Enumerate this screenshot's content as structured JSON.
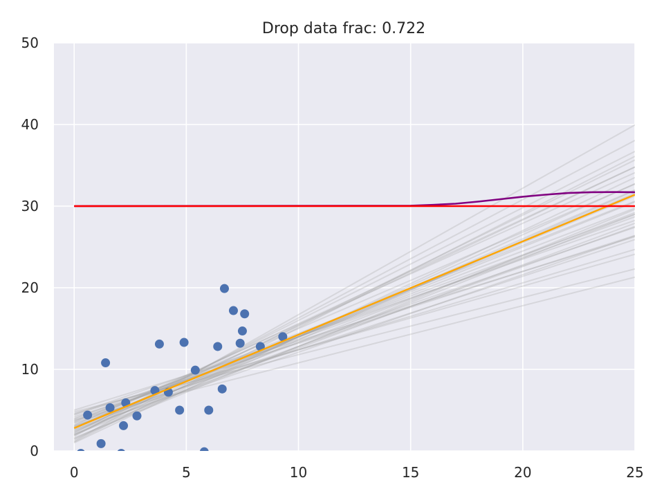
{
  "chart_data": {
    "type": "scatter",
    "title": "Drop data frac: 0.722",
    "xlabel": "",
    "ylabel": "",
    "xlim": [
      -0.9,
      25
    ],
    "ylim": [
      0,
      50
    ],
    "xticks": [
      0,
      5,
      10,
      15,
      20,
      25
    ],
    "yticks": [
      0,
      10,
      20,
      30,
      40,
      50
    ],
    "grid": true,
    "background": "#eaeaf2",
    "colors": {
      "points": "#4c72b0",
      "posterior_lines": "#a0a0a0",
      "fit_line": "#ffa500",
      "prior_constant": "#ff0000",
      "smooth_curve": "#800080"
    },
    "points": [
      {
        "x": 0.3,
        "y": -0.3
      },
      {
        "x": 0.6,
        "y": 4.4
      },
      {
        "x": 1.2,
        "y": 0.9
      },
      {
        "x": 1.4,
        "y": 10.8
      },
      {
        "x": 1.6,
        "y": 5.3
      },
      {
        "x": 2.1,
        "y": -0.3
      },
      {
        "x": 2.2,
        "y": 3.1
      },
      {
        "x": 2.3,
        "y": 5.9
      },
      {
        "x": 2.8,
        "y": 4.3
      },
      {
        "x": 3.6,
        "y": 7.4
      },
      {
        "x": 3.8,
        "y": 13.1
      },
      {
        "x": 4.2,
        "y": 7.2
      },
      {
        "x": 4.7,
        "y": 5.0
      },
      {
        "x": 4.9,
        "y": 13.3
      },
      {
        "x": 5.4,
        "y": 9.9
      },
      {
        "x": 5.8,
        "y": -0.1
      },
      {
        "x": 6.0,
        "y": 5.0
      },
      {
        "x": 6.4,
        "y": 12.8
      },
      {
        "x": 6.6,
        "y": 7.6
      },
      {
        "x": 6.7,
        "y": 19.9
      },
      {
        "x": 7.1,
        "y": 17.2
      },
      {
        "x": 7.4,
        "y": 13.2
      },
      {
        "x": 7.5,
        "y": 14.7
      },
      {
        "x": 7.6,
        "y": 16.8
      },
      {
        "x": 8.3,
        "y": 12.8
      },
      {
        "x": 9.3,
        "y": 14.0
      }
    ],
    "posterior_lines": [
      {
        "intercept": 1.0,
        "slope": 1.3
      },
      {
        "intercept": 1.5,
        "slope": 1.25
      },
      {
        "intercept": 2.0,
        "slope": 1.2
      },
      {
        "intercept": 2.5,
        "slope": 1.15
      },
      {
        "intercept": 3.0,
        "slope": 1.1
      },
      {
        "intercept": 3.5,
        "slope": 1.05
      },
      {
        "intercept": 4.0,
        "slope": 1.0
      },
      {
        "intercept": 4.5,
        "slope": 0.95
      },
      {
        "intercept": 5.0,
        "slope": 0.85
      },
      {
        "intercept": 4.8,
        "slope": 0.7
      },
      {
        "intercept": 3.8,
        "slope": 0.7
      },
      {
        "intercept": 1.2,
        "slope": 1.55
      },
      {
        "intercept": 1.8,
        "slope": 1.45
      },
      {
        "intercept": 2.2,
        "slope": 1.38
      },
      {
        "intercept": 2.8,
        "slope": 1.28
      },
      {
        "intercept": 3.2,
        "slope": 1.18
      },
      {
        "intercept": 3.6,
        "slope": 1.08
      },
      {
        "intercept": 2.6,
        "slope": 0.95
      },
      {
        "intercept": 3.0,
        "slope": 0.98
      },
      {
        "intercept": 2.4,
        "slope": 1.02
      },
      {
        "intercept": 1.6,
        "slope": 1.12
      },
      {
        "intercept": 2.0,
        "slope": 1.08
      },
      {
        "intercept": 3.4,
        "slope": 0.9
      },
      {
        "intercept": 4.2,
        "slope": 0.82
      },
      {
        "intercept": 1.4,
        "slope": 1.22
      },
      {
        "intercept": 2.9,
        "slope": 1.14
      },
      {
        "intercept": 3.7,
        "slope": 1.0
      },
      {
        "intercept": 2.3,
        "slope": 1.3
      },
      {
        "intercept": 1.9,
        "slope": 1.35
      },
      {
        "intercept": 4.4,
        "slope": 0.88
      },
      {
        "intercept": 3.1,
        "slope": 1.24
      },
      {
        "intercept": 2.7,
        "slope": 1.06
      },
      {
        "intercept": 4.6,
        "slope": 0.78
      },
      {
        "intercept": 1.1,
        "slope": 1.4
      },
      {
        "intercept": 3.9,
        "slope": 0.94
      },
      {
        "intercept": 2.1,
        "slope": 1.18
      }
    ],
    "fit_line": {
      "x": [
        0,
        25
      ],
      "y": [
        2.8,
        31.4
      ]
    },
    "prior_constant": {
      "x": [
        0,
        25
      ],
      "y": [
        30,
        30
      ]
    },
    "smooth_curve": {
      "x": [
        0,
        15,
        16,
        17,
        18,
        19,
        20,
        21,
        22,
        23,
        24,
        25
      ],
      "y": [
        30,
        30.05,
        30.15,
        30.3,
        30.55,
        30.85,
        31.15,
        31.4,
        31.6,
        31.7,
        31.72,
        31.7
      ]
    }
  }
}
